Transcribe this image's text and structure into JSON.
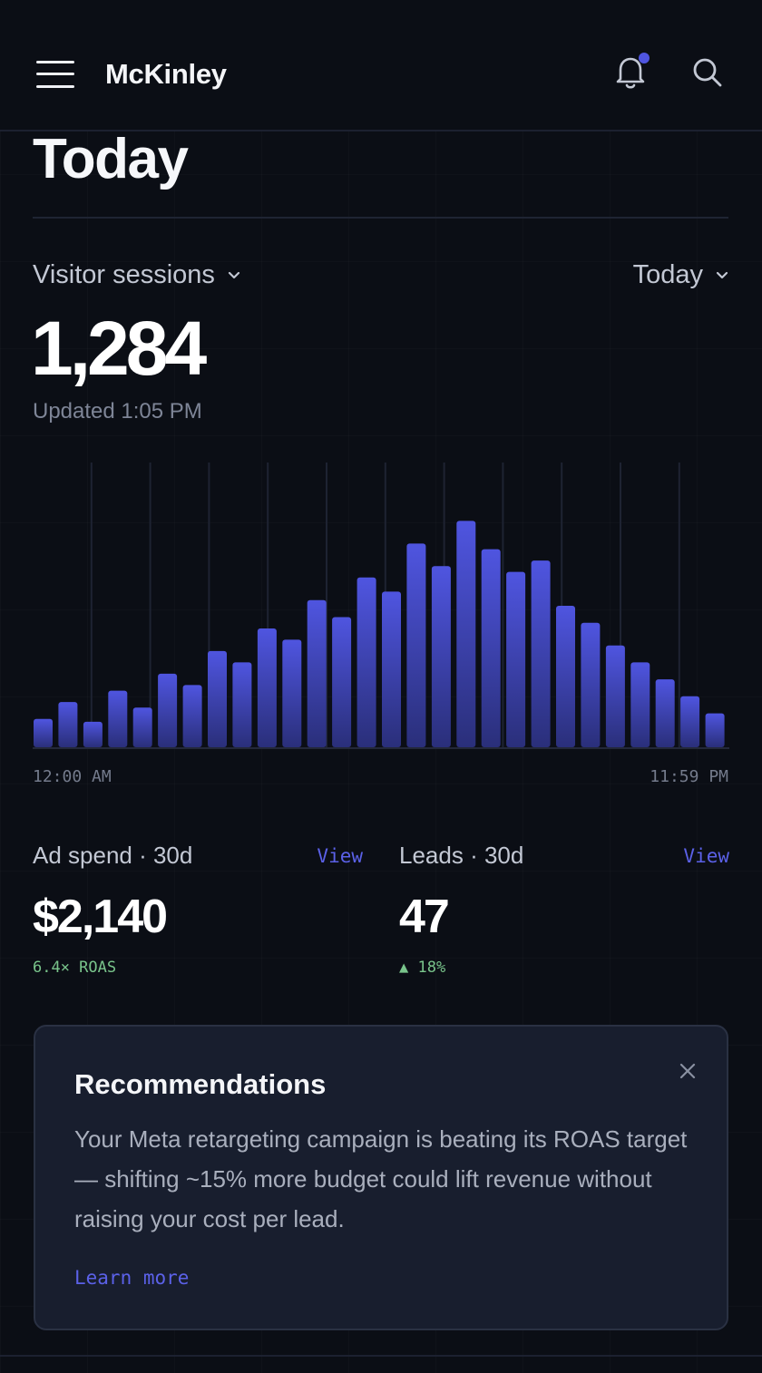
{
  "header": {
    "brand": "McKinley",
    "accent": "#4f55e0"
  },
  "page": {
    "title": "Today"
  },
  "metric": {
    "selector_label": "Visitor sessions",
    "range_label": "Today",
    "value": "1,284",
    "updated": "Updated 1:05 PM"
  },
  "chart_data": {
    "type": "bar",
    "x_start_label": "12:00 AM",
    "x_end_label": "11:59 PM",
    "values": [
      10,
      16,
      9,
      20,
      14,
      26,
      22,
      34,
      30,
      42,
      38,
      52,
      46,
      60,
      55,
      72,
      64,
      80,
      70,
      62,
      66,
      50,
      44,
      36,
      30,
      24,
      18,
      12
    ],
    "ylim": [
      0,
      100
    ],
    "bar_color_top": "#4f55e0",
    "bar_color_bottom": "#2a2f7a",
    "grid": true
  },
  "kpis": [
    {
      "label": "Ad spend · 30d",
      "link": "View",
      "value": "$2,140",
      "sub": "6.4× ROAS"
    },
    {
      "label": "Leads · 30d",
      "link": "View",
      "value": "47",
      "sub": "▲ 18%"
    }
  ],
  "recommendation": {
    "title": "Recommendations",
    "body": "Your Meta retargeting campaign is beating its ROAS target — shifting ~15% more budget could lift revenue without raising your cost per lead.",
    "link": "Learn more"
  }
}
